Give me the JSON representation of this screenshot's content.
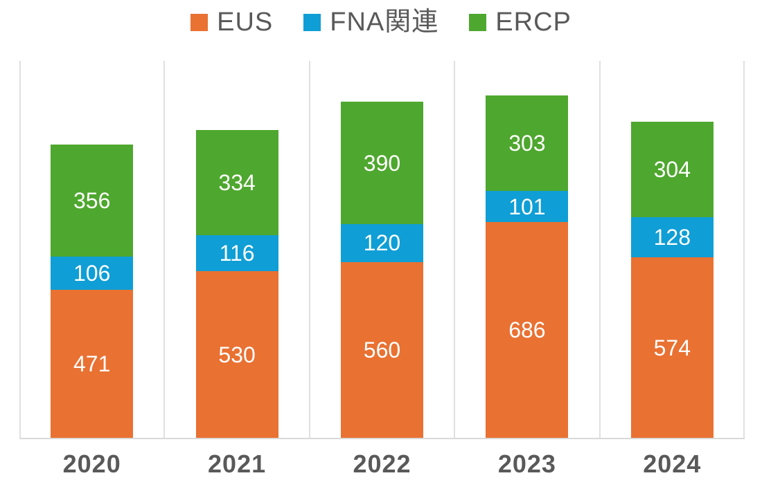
{
  "chart_data": {
    "type": "bar",
    "stacked": true,
    "title": "",
    "xlabel": "",
    "ylabel": "",
    "categories": [
      "2020",
      "2021",
      "2022",
      "2023",
      "2024"
    ],
    "series": [
      {
        "name": "EUS",
        "color": "#E97132",
        "values": [
          471,
          530,
          560,
          686,
          574
        ]
      },
      {
        "name": "FNA関連",
        "color": "#0F9ED5",
        "values": [
          106,
          116,
          120,
          101,
          128
        ]
      },
      {
        "name": "ERCP",
        "color": "#4EA72E",
        "values": [
          356,
          334,
          390,
          303,
          304
        ]
      }
    ],
    "totals": [
      933,
      980,
      1070,
      1090,
      1006
    ],
    "ylim": [
      0,
      1200
    ],
    "y_axis_visible": false,
    "grid": "vertical-category-boundaries",
    "legend_position": "top-center",
    "value_labels": "white-centered-in-segments"
  },
  "style": {
    "gridline_color": "#E0E0E0",
    "axis_line_color": "#D9D9D9",
    "label_text_color": "#595959",
    "value_text_color": "#FFFFFF",
    "background_color": "#FFFFFF"
  }
}
